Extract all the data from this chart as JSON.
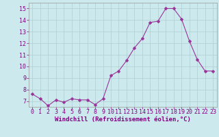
{
  "x": [
    0,
    1,
    2,
    3,
    4,
    5,
    6,
    7,
    8,
    9,
    10,
    11,
    12,
    13,
    14,
    15,
    16,
    17,
    18,
    19,
    20,
    21,
    22,
    23
  ],
  "y": [
    7.6,
    7.2,
    6.6,
    7.1,
    6.9,
    7.2,
    7.1,
    7.1,
    6.7,
    7.2,
    9.2,
    9.6,
    10.5,
    11.6,
    12.4,
    13.8,
    13.9,
    15.0,
    15.0,
    14.1,
    12.2,
    10.6,
    9.6,
    9.6
  ],
  "line_color": "#993399",
  "marker": "D",
  "marker_size": 2.5,
  "background_color": "#cce9ed",
  "grid_color": "#b0cdd0",
  "xlabel": "Windchill (Refroidissement éolien,°C)",
  "ylabel": "",
  "ylim": [
    6.5,
    15.5
  ],
  "xlim": [
    -0.5,
    23.5
  ],
  "yticks": [
    7,
    8,
    9,
    10,
    11,
    12,
    13,
    14,
    15
  ],
  "xticks": [
    0,
    1,
    2,
    3,
    4,
    5,
    6,
    7,
    8,
    9,
    10,
    11,
    12,
    13,
    14,
    15,
    16,
    17,
    18,
    19,
    20,
    21,
    22,
    23
  ],
  "tick_color": "#800080",
  "label_color": "#800080",
  "axis_color": "#999999",
  "label_fontsize": 6.5,
  "tick_fontsize": 6.0
}
